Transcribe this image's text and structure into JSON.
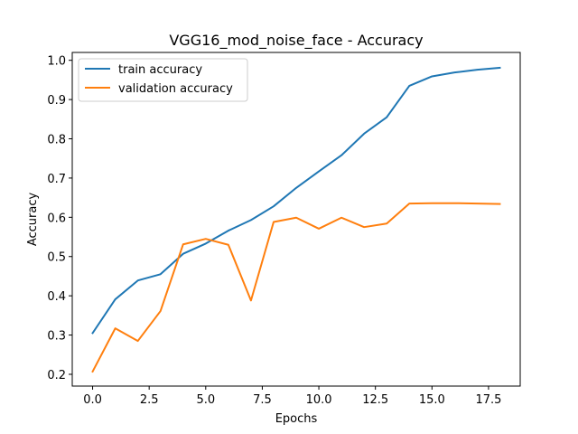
{
  "chart_data": {
    "type": "line",
    "title": "VGG16_mod_noise_face - Accuracy",
    "xlabel": "Epochs",
    "ylabel": "Accuracy",
    "xlim": [
      -0.9,
      18.9
    ],
    "ylim": [
      0.17,
      1.02
    ],
    "xticks": [
      0,
      2.5,
      5,
      7.5,
      10,
      12.5,
      15,
      17.5
    ],
    "xtick_labels": [
      "0.0",
      "2.5",
      "5.0",
      "7.5",
      "10.0",
      "12.5",
      "15.0",
      "17.5"
    ],
    "yticks": [
      0.2,
      0.3,
      0.4,
      0.5,
      0.6,
      0.7,
      0.8,
      0.9,
      1.0
    ],
    "ytick_labels": [
      "0.2",
      "0.3",
      "0.4",
      "0.5",
      "0.6",
      "0.7",
      "0.8",
      "0.9",
      "1.0"
    ],
    "grid": false,
    "legend_position": "top-left",
    "x": [
      0,
      1,
      2,
      3,
      4,
      5,
      6,
      7,
      8,
      9,
      10,
      11,
      12,
      13,
      14,
      15,
      16,
      17,
      18
    ],
    "series": [
      {
        "name": "train accuracy",
        "color": "#1f77b4",
        "values": [
          0.305,
          0.391,
          0.439,
          0.455,
          0.507,
          0.533,
          0.566,
          0.593,
          0.628,
          0.675,
          0.717,
          0.758,
          0.813,
          0.855,
          0.935,
          0.959,
          0.969,
          0.976,
          0.981
        ]
      },
      {
        "name": "validation accuracy",
        "color": "#ff7f0e",
        "values": [
          0.207,
          0.317,
          0.285,
          0.361,
          0.531,
          0.545,
          0.53,
          0.388,
          0.588,
          0.599,
          0.571,
          0.599,
          0.575,
          0.584,
          0.635,
          0.636,
          0.636,
          0.635,
          0.634
        ]
      }
    ]
  }
}
